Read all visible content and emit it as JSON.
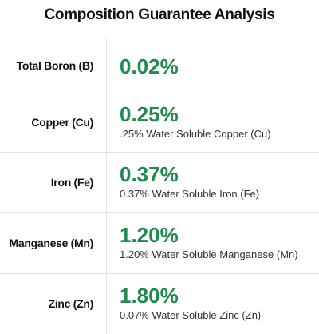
{
  "header": {
    "title": "Composition Guarantee Analysis"
  },
  "table": {
    "rows": [
      {
        "label": "Total Boron (B)",
        "value": "0.02%",
        "note": null
      },
      {
        "label": "Copper (Cu)",
        "value": "0.25%",
        "note": ".25% Water Soluble Copper (Cu)"
      },
      {
        "label": "Iron (Fe)",
        "value": "0.37%",
        "note": "0.37% Water Soluble Iron (Fe)"
      },
      {
        "label": "Manganese (Mn)",
        "value": "1.20%",
        "note": "1.20% Water Soluble Manganese (Mn)"
      },
      {
        "label": "Zinc (Zn)",
        "value": "1.80%",
        "note": "0.07% Water Soluble Zinc (Zn)"
      }
    ]
  }
}
